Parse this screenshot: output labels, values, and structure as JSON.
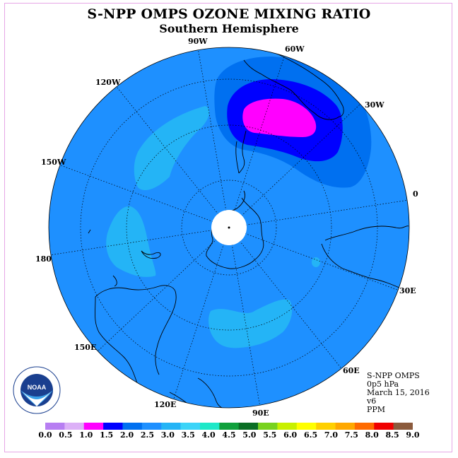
{
  "title": "S-NPP OMPS OZONE MIXING RATIO",
  "subtitle": "Southern Hemisphere",
  "info": {
    "instrument": "S-NPP OMPS",
    "level": "0p5 hPa",
    "date": "March 15, 2016",
    "version": "v6",
    "units": "PPM"
  },
  "longitude_labels": [
    "90W",
    "60W",
    "30W",
    "0",
    "30E",
    "60E",
    "90E",
    "120E",
    "150E",
    "180",
    "150W",
    "120W"
  ],
  "colorbar": {
    "ticks": [
      "0.0",
      "0.5",
      "1.0",
      "1.5",
      "2.0",
      "2.5",
      "3.0",
      "3.5",
      "4.0",
      "4.5",
      "5.0",
      "5.5",
      "6.0",
      "6.5",
      "7.0",
      "7.5",
      "8.0",
      "8.5",
      "9.0"
    ],
    "colors": [
      "#b77ef2",
      "#dcb0f7",
      "#ff00ff",
      "#0000ff",
      "#0070f0",
      "#1e90ff",
      "#24b4f6",
      "#3cd4f8",
      "#1ee8c8",
      "#10a03c",
      "#0a6e24",
      "#78d21e",
      "#c8f000",
      "#ffff00",
      "#ffd000",
      "#ffa800",
      "#ff6a00",
      "#f00000",
      "#8b5a3c"
    ]
  },
  "colors": {
    "background_field": "#1e90ff",
    "field_light": "#24b4f6",
    "field_2_0": "#0070f0",
    "field_1_5": "#0000ff",
    "field_1_0": "#ff00ff",
    "no_data": "#ffffff"
  },
  "logo": {
    "text": "NOAA",
    "ring_text": "NATIONAL OCEANIC AND ATMOSPHERIC ADMINISTRATION · U.S. DEPARTMENT OF COMMERCE"
  }
}
